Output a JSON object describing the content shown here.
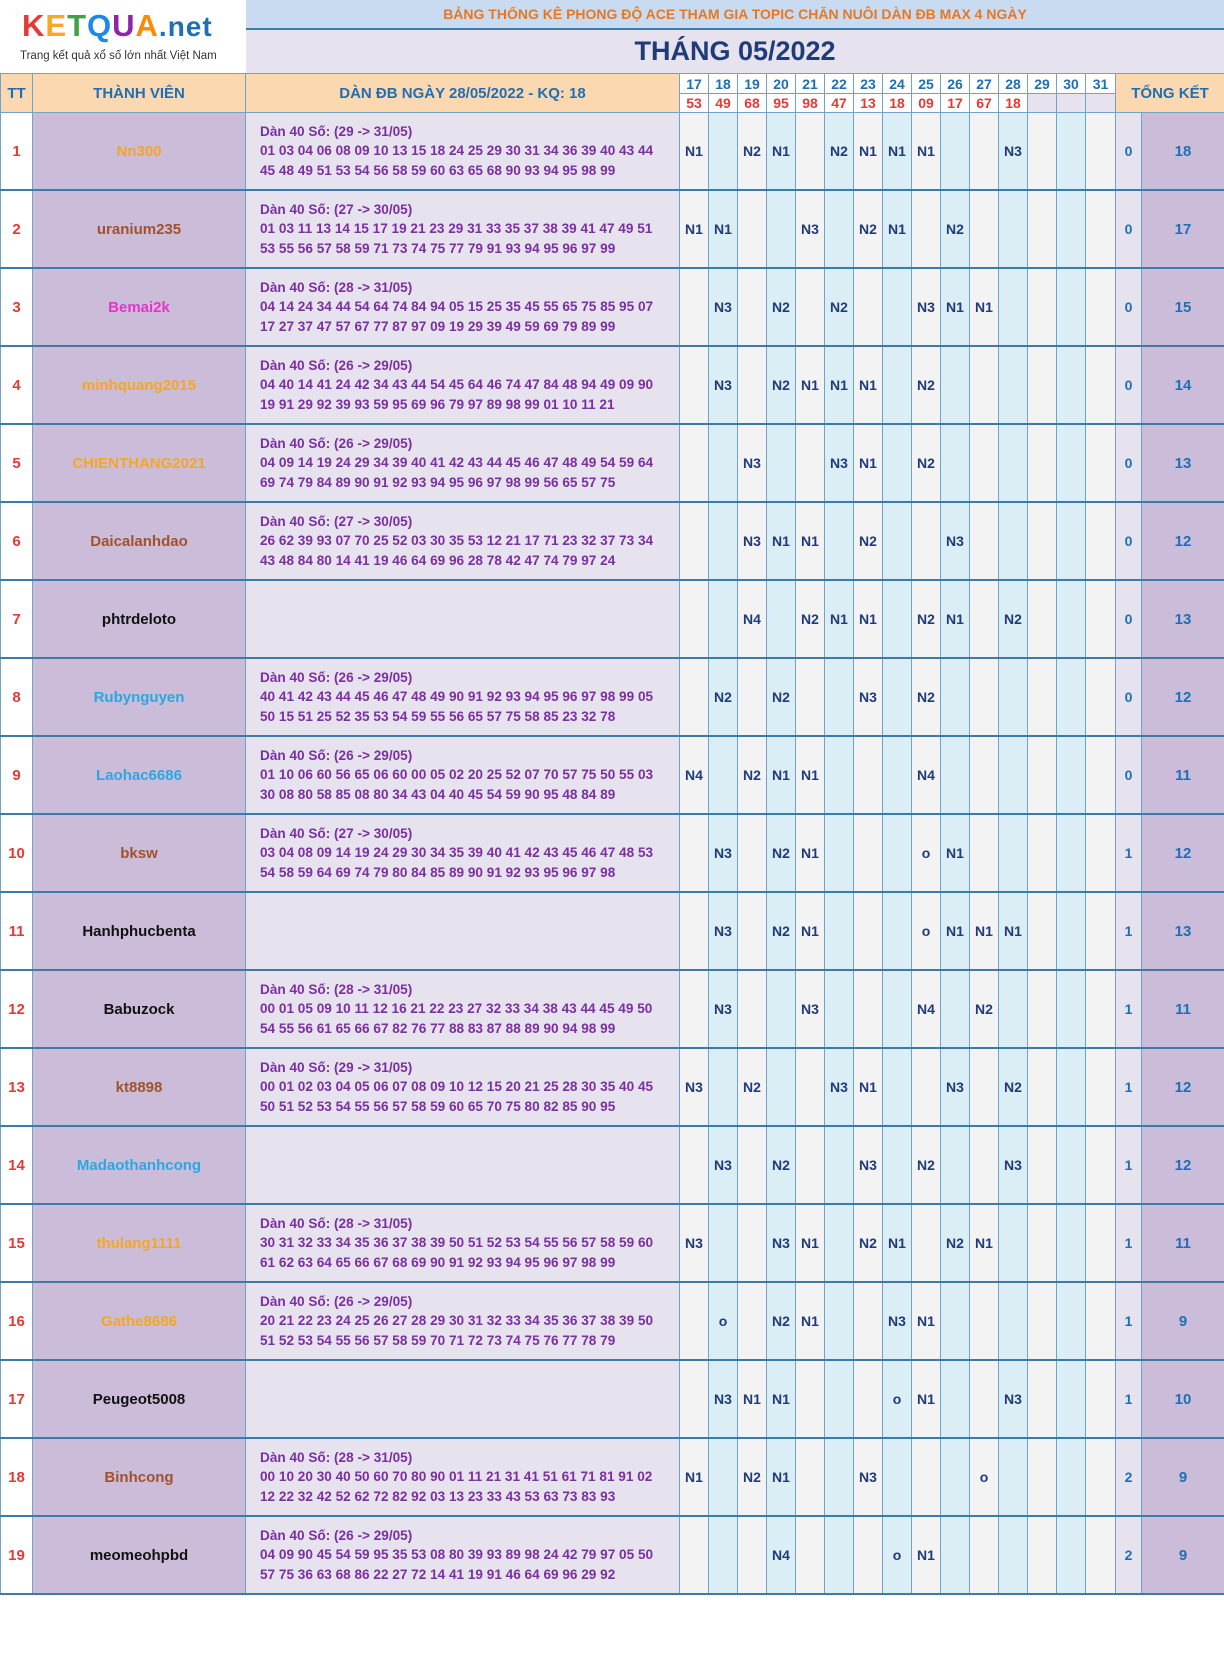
{
  "logo": {
    "brand": "KETQUA.net",
    "brand_parts": [
      "K",
      "E",
      "T",
      "Q",
      "U",
      "A"
    ],
    "brand_suffix": ".net",
    "tagline": "Trang kết quả xổ số lớn nhất Việt Nam"
  },
  "header": {
    "title": "BẢNG THỐNG KÊ PHONG ĐỘ ACE THAM GIA TOPIC CHĂN NUÔI DÀN ĐB MAX 4 NGÀY",
    "month": "THÁNG 05/2022"
  },
  "columns": {
    "tt": "TT",
    "member": "THÀNH VIÊN",
    "dan": "DÀN ĐB NGÀY 28/05/2022 - KQ: 18",
    "total": "TỔNG KẾT"
  },
  "days": [
    "17",
    "18",
    "19",
    "20",
    "21",
    "22",
    "23",
    "24",
    "25",
    "26",
    "27",
    "28",
    "29",
    "30",
    "31"
  ],
  "results": [
    "53",
    "49",
    "68",
    "95",
    "98",
    "47",
    "13",
    "18",
    "09",
    "17",
    "67",
    "18",
    "",
    "",
    ""
  ],
  "rows": [
    {
      "tt": "1",
      "name": "Nn300",
      "color": "#f5a623",
      "dan": [
        "Dàn 40 Số: (29 -> 31/05)",
        "01 03 04 06 08 09 10 13 15 18 24 25 29 30 31 34 36 39 40 43 44",
        "45 48 49 51 53 54 56 58 59 60 63 65 68 90 93 94 95 98 99"
      ],
      "marks": [
        "N1",
        "",
        "N2",
        "N1",
        "",
        "N2",
        "N1",
        "N1",
        "N1",
        "",
        "",
        "N3",
        "",
        "",
        ""
      ],
      "score": "0",
      "total": "18"
    },
    {
      "tt": "2",
      "name": "uranium235",
      "color": "#a0522d",
      "dan": [
        "Dàn 40 Số: (27 -> 30/05)",
        "01 03 11 13 14 15 17 19 21 23 29 31 33 35 37 38 39 41 47 49 51",
        "53 55 56 57 58 59 71 73 74 75 77 79 91 93 94 95 96 97 99"
      ],
      "marks": [
        "N1",
        "N1",
        "",
        "",
        "N3",
        "",
        "N2",
        "N1",
        "",
        "N2",
        "",
        "",
        "",
        "",
        ""
      ],
      "score": "0",
      "total": "17"
    },
    {
      "tt": "3",
      "name": "Bemai2k",
      "color": "#e535c8",
      "dan": [
        "Dàn 40 Số: (28 -> 31/05)",
        "04 14 24 34 44 54 64 74 84 94 05 15 25 35 45 55 65 75 85 95 07",
        "17 27 37 47 57 67 77 87 97 09 19 29 39 49 59 69 79 89 99"
      ],
      "marks": [
        "",
        "N3",
        "",
        "N2",
        "",
        "N2",
        "",
        "",
        "N3",
        "N1",
        "N1",
        "",
        "",
        "",
        ""
      ],
      "score": "0",
      "total": "15"
    },
    {
      "tt": "4",
      "name": "minhquang2015",
      "color": "#f5a623",
      "dan": [
        "Dàn 40 Số: (26 -> 29/05)",
        "04 40 14 41 24 42 34 43 44 54 45 64 46 74 47 84 48 94 49 09 90",
        "19 91 29 92 39 93 59 95 69 96 79 97 89 98 99 01 10 11 21"
      ],
      "marks": [
        "",
        "N3",
        "",
        "N2",
        "N1",
        "N1",
        "N1",
        "",
        "N2",
        "",
        "",
        "",
        "",
        "",
        ""
      ],
      "score": "0",
      "total": "14"
    },
    {
      "tt": "5",
      "name": "CHIENTHANG2021",
      "color": "#f5a623",
      "dan": [
        "Dàn 40 Số: (26 -> 29/05)",
        "04 09 14 19 24 29 34 39 40 41 42 43 44 45 46 47 48 49 54 59 64",
        "69 74 79 84 89 90 91 92 93 94 95 96 97 98 99 56 65 57 75"
      ],
      "marks": [
        "",
        "",
        "N3",
        "",
        "",
        "N3",
        "N1",
        "",
        "N2",
        "",
        "",
        "",
        "",
        "",
        ""
      ],
      "score": "0",
      "total": "13"
    },
    {
      "tt": "6",
      "name": "Daicalanhdao",
      "color": "#a0522d",
      "dan": [
        "Dàn 40 Số: (27 -> 30/05)",
        "26 62 39 93 07 70 25 52 03 30 35 53 12 21 17 71 23 32 37 73 34",
        "43 48 84 80 14 41 19 46 64 69 96 28 78 42 47 74 79 97 24"
      ],
      "marks": [
        "",
        "",
        "N3",
        "N1",
        "N1",
        "",
        "N2",
        "",
        "",
        "N3",
        "",
        "",
        "",
        "",
        ""
      ],
      "score": "0",
      "total": "12"
    },
    {
      "tt": "7",
      "name": "phtrdeloto",
      "color": "#111111",
      "dan": [
        "",
        "",
        ""
      ],
      "marks": [
        "",
        "",
        "N4",
        "",
        "N2",
        "N1",
        "N1",
        "",
        "N2",
        "N1",
        "",
        "N2",
        "",
        "",
        ""
      ],
      "score": "0",
      "total": "13"
    },
    {
      "tt": "8",
      "name": "Rubynguyen",
      "color": "#29a8e0",
      "dan": [
        "Dàn 40 Số: (26 -> 29/05)",
        "40 41 42 43 44 45 46 47 48 49 90 91 92 93 94 95 96 97 98 99 05",
        "50 15 51 25 52 35 53 54 59 55 56 65 57 75 58 85 23 32 78"
      ],
      "marks": [
        "",
        "N2",
        "",
        "N2",
        "",
        "",
        "N3",
        "",
        "N2",
        "",
        "",
        "",
        "",
        "",
        ""
      ],
      "score": "0",
      "total": "12"
    },
    {
      "tt": "9",
      "name": "Laohac6686",
      "color": "#29a8e0",
      "dan": [
        "Dàn 40 Số: (26 -> 29/05)",
        "01 10 06 60 56 65 06 60 00 05 02 20 25 52 07 70 57 75 50 55 03",
        "30 08 80 58 85 08 80 34 43 04 40 45 54 59 90 95 48 84 89"
      ],
      "marks": [
        "N4",
        "",
        "N2",
        "N1",
        "N1",
        "",
        "",
        "",
        "N4",
        "",
        "",
        "",
        "",
        "",
        ""
      ],
      "score": "0",
      "total": "11"
    },
    {
      "tt": "10",
      "name": "bksw",
      "color": "#a0522d",
      "dan": [
        "Dàn 40 Số: (27 -> 30/05)",
        "03 04 08 09 14 19 24 29 30 34 35 39 40 41 42 43 45 46 47 48 53",
        "54 58 59 64 69 74 79 80 84 85 89 90 91 92 93 95 96 97 98"
      ],
      "marks": [
        "",
        "N3",
        "",
        "N2",
        "N1",
        "",
        "",
        "",
        "o",
        "N1",
        "",
        "",
        "",
        "",
        ""
      ],
      "score": "1",
      "total": "12"
    },
    {
      "tt": "11",
      "name": "Hanhphucbenta",
      "color": "#111111",
      "dan": [
        "",
        "",
        ""
      ],
      "marks": [
        "",
        "N3",
        "",
        "N2",
        "N1",
        "",
        "",
        "",
        "o",
        "N1",
        "N1",
        "N1",
        "",
        "",
        ""
      ],
      "score": "1",
      "total": "13"
    },
    {
      "tt": "12",
      "name": "Babuzock",
      "color": "#111111",
      "dan": [
        "Dàn 40 Số: (28 -> 31/05)",
        "00 01 05 09 10 11 12 16 21 22 23 27 32 33 34 38 43 44 45 49 50",
        "54 55 56 61 65 66 67 82 76 77 88 83 87 88 89 90 94 98 99"
      ],
      "marks": [
        "",
        "N3",
        "",
        "",
        "N3",
        "",
        "",
        "",
        "N4",
        "",
        "N2",
        "",
        "",
        "",
        ""
      ],
      "score": "1",
      "total": "11"
    },
    {
      "tt": "13",
      "name": "kt8898",
      "color": "#a0522d",
      "dan": [
        "Dàn 40 Số: (29 -> 31/05)",
        "00 01 02 03 04 05 06 07 08 09 10 12 15 20 21 25 28 30 35 40 45",
        "50 51 52 53 54 55 56 57 58 59 60 65 70 75 80 82 85 90 95"
      ],
      "marks": [
        "N3",
        "",
        "N2",
        "",
        "",
        "N3",
        "N1",
        "",
        "",
        "N3",
        "",
        "N2",
        "",
        "",
        ""
      ],
      "score": "1",
      "total": "12"
    },
    {
      "tt": "14",
      "name": "Madaothanhcong",
      "color": "#29a8e0",
      "dan": [
        "",
        "",
        ""
      ],
      "marks": [
        "",
        "N3",
        "",
        "N2",
        "",
        "",
        "N3",
        "",
        "N2",
        "",
        "",
        "N3",
        "",
        "",
        ""
      ],
      "score": "1",
      "total": "12"
    },
    {
      "tt": "15",
      "name": "thulang1111",
      "color": "#f5a623",
      "dan": [
        "Dàn 40 Số: (28 -> 31/05)",
        "30 31 32 33 34 35 36 37 38 39 50 51 52 53 54 55 56 57 58 59 60",
        "61 62 63 64 65 66 67 68 69 90 91 92 93 94 95 96 97 98 99"
      ],
      "marks": [
        "N3",
        "",
        "",
        "N3",
        "N1",
        "",
        "N2",
        "N1",
        "",
        "N2",
        "N1",
        "",
        "",
        "",
        ""
      ],
      "score": "1",
      "total": "11"
    },
    {
      "tt": "16",
      "name": "Gathe8686",
      "color": "#f5a623",
      "dan": [
        "Dàn 40 Số: (26 -> 29/05)",
        "20 21 22 23 24 25 26 27 28 29 30 31 32 33 34 35 36 37 38 39 50",
        "51 52 53 54 55 56 57 58 59 70 71 72 73 74 75 76 77 78 79"
      ],
      "marks": [
        "",
        "o",
        "",
        "N2",
        "N1",
        "",
        "",
        "N3",
        "N1",
        "",
        "",
        "",
        "",
        "",
        ""
      ],
      "score": "1",
      "total": "9"
    },
    {
      "tt": "17",
      "name": "Peugeot5008",
      "color": "#111111",
      "dan": [
        "",
        "",
        ""
      ],
      "marks": [
        "",
        "N3",
        "N1",
        "N1",
        "",
        "",
        "",
        "o",
        "N1",
        "",
        "",
        "N3",
        "",
        "",
        ""
      ],
      "score": "1",
      "total": "10"
    },
    {
      "tt": "18",
      "name": "Binhcong",
      "color": "#a0522d",
      "dan": [
        "Dàn 40 Số: (28 -> 31/05)",
        "00 10 20 30 40 50 60 70 80 90 01 11 21 31 41 51 61 71 81 91 02",
        "12 22 32 42 52 62 72 82 92 03 13 23 33 43 53 63 73 83 93"
      ],
      "marks": [
        "N1",
        "",
        "N2",
        "N1",
        "",
        "",
        "N3",
        "",
        "",
        "",
        "o",
        "",
        "",
        "",
        ""
      ],
      "score": "2",
      "total": "9"
    },
    {
      "tt": "19",
      "name": "meomeohpbd",
      "color": "#111111",
      "dan": [
        "Dàn 40 Số: (26 -> 29/05)",
        "04 09 90 45 54 59 95 35 53 08 80 39 93 89 98 24 42 79 97 05 50",
        "57 75 36 63 68 86 22 27 72 14 41 19 91 46 64 69 96 29 92"
      ],
      "marks": [
        "",
        "",
        "",
        "N4",
        "",
        "",
        "",
        "o",
        "N1",
        "",
        "",
        "",
        "",
        "",
        ""
      ],
      "score": "2",
      "total": "9"
    }
  ]
}
